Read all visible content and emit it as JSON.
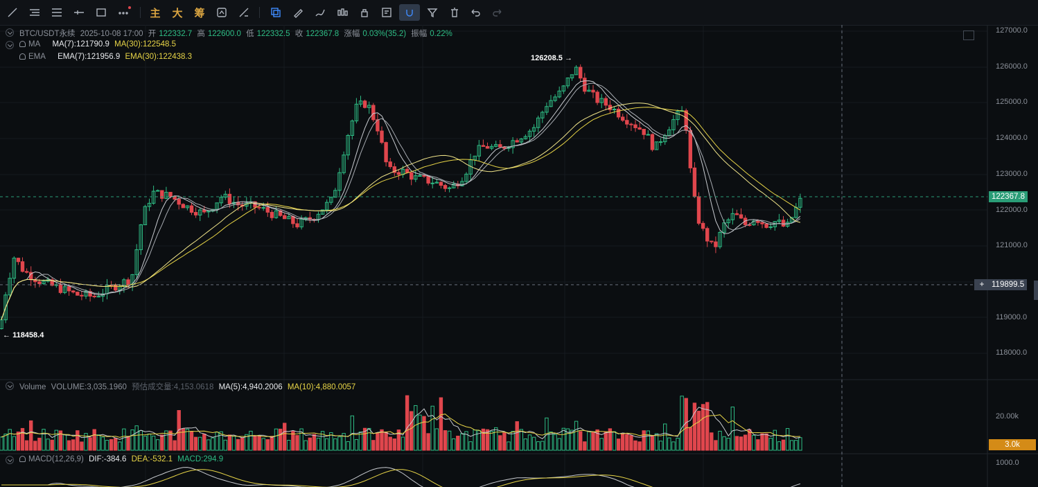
{
  "toolbar": {
    "tools_left": [
      "trend-line",
      "horizontal-lines",
      "parallel-channel",
      "horizontal-ray",
      "rectangle",
      "more"
    ],
    "text_tools": [
      "主",
      "大",
      "筹"
    ],
    "tools_right": [
      "replay",
      "measure",
      "brush",
      "indicators",
      "lock",
      "note",
      "magnet",
      "filter",
      "trash",
      "undo",
      "redo"
    ]
  },
  "legend": {
    "symbol": "BTC/USDT永续",
    "time": "2025-10-08 17:00",
    "open_label": "开",
    "open": "122332.7",
    "high_label": "高",
    "high": "122600.0",
    "low_label": "低",
    "low": "122332.5",
    "close_label": "收",
    "close": "122367.8",
    "change_label": "涨幅",
    "change": "0.03%(35.2)",
    "amp_label": "振幅",
    "amp": "0.22%",
    "ma_name": "MA",
    "ma7": "MA(7):121790.9",
    "ma30": "MA(30):122548.5",
    "ema_name": "EMA",
    "ema7": "EMA(7):121956.9",
    "ema30": "EMA(30):122438.3",
    "vol_name": "Volume",
    "vol": "VOLUME:3,035.1960",
    "vol_est": "预估成交量:4,153.0618",
    "vol_ma5": "MA(5):4,940.2006",
    "vol_ma10": "MA(10):4,880.0057",
    "macd_name": "MACD(12,26,9)",
    "dif": "DIF:-384.6",
    "dea": "DEA:-532.1",
    "macd": "MACD:294.9"
  },
  "price_axis": [
    "127000.0",
    "126000.0",
    "125000.0",
    "124000.0",
    "123000.0",
    "122000.0",
    "121000.0",
    "119000.0",
    "118000.0"
  ],
  "current_price": "122367.8",
  "crosshair_price": "119899.5",
  "volume_axis": "20.00k",
  "volume_tag": "3.0k",
  "macd_axis": "1000.0",
  "marker_high": "126208.5",
  "marker_low": "118458.4",
  "colors": {
    "up": "#2ebd85",
    "down": "#e0464d",
    "ma_fast": "#c9ccd1",
    "ma_slow": "#e8d547",
    "bg": "#0b0e11"
  },
  "chart_data": {
    "type": "candlestick",
    "ylim": [
      117400,
      127200
    ],
    "candles": []
  }
}
